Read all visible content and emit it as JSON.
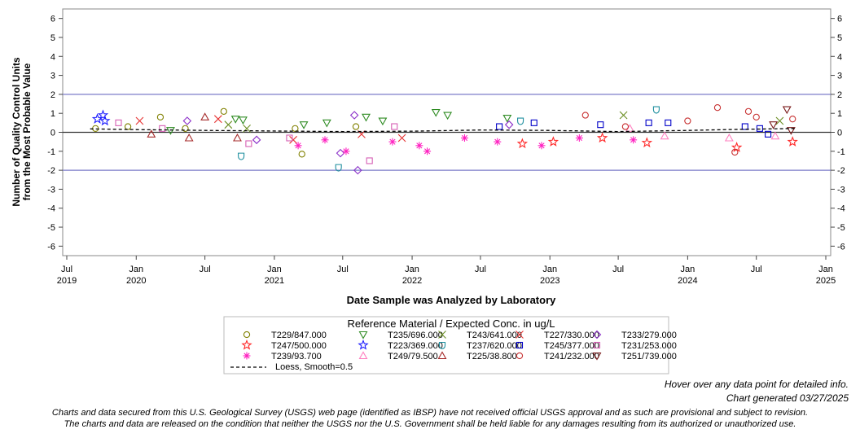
{
  "chart_data": {
    "type": "scatter",
    "title": "",
    "xlabel": "Date Sample was Analyzed by Laboratory",
    "ylabel_line1": "Number of Quality Control Units",
    "ylabel_line2": "from the Most Probable Value",
    "xlim": [
      "2019-07-01",
      "2025-01-01"
    ],
    "ylim": [
      -6.5,
      6.5
    ],
    "y_ticks": [
      "-6",
      "-5",
      "-4",
      "-3",
      "-2",
      "-1",
      "0",
      "1",
      "2",
      "3",
      "4",
      "5",
      "6"
    ],
    "x_ticks": [
      {
        "date": "2019-07-01",
        "line1": "Jul",
        "line2": "2019"
      },
      {
        "date": "2020-01-01",
        "line1": "Jan",
        "line2": "2020"
      },
      {
        "date": "2020-07-01",
        "line1": "Jul",
        "line2": ""
      },
      {
        "date": "2021-01-01",
        "line1": "Jan",
        "line2": "2021"
      },
      {
        "date": "2021-07-01",
        "line1": "Jul",
        "line2": ""
      },
      {
        "date": "2022-01-01",
        "line1": "Jan",
        "line2": "2022"
      },
      {
        "date": "2022-07-01",
        "line1": "Jul",
        "line2": ""
      },
      {
        "date": "2023-01-01",
        "line1": "Jan",
        "line2": "2023"
      },
      {
        "date": "2023-07-01",
        "line1": "Jul",
        "line2": ""
      },
      {
        "date": "2024-01-01",
        "line1": "Jan",
        "line2": "2024"
      },
      {
        "date": "2024-07-01",
        "line1": "Jul",
        "line2": ""
      },
      {
        "date": "2025-01-01",
        "line1": "Jan",
        "line2": "2025"
      }
    ],
    "reference_lines": [
      2,
      0,
      -2
    ],
    "reference_colors": {
      "limit": "#7b7bc8",
      "zero": "#333333"
    },
    "legend_title": "Reference Material / Expected Conc. in ug/L",
    "series": [
      {
        "name": "T229/847.000",
        "symbol": "circle",
        "color": "#808000",
        "points": [
          [
            "2019-09-15",
            0.2
          ],
          [
            "2019-12-10",
            0.3
          ],
          [
            "2020-03-05",
            0.8
          ],
          [
            "2020-05-10",
            0.2
          ],
          [
            "2020-08-20",
            1.1
          ],
          [
            "2021-02-25",
            0.2
          ],
          [
            "2021-03-15",
            -1.15
          ],
          [
            "2021-08-05",
            0.3
          ]
        ]
      },
      {
        "name": "T235/696.000",
        "symbol": "triangle-down",
        "color": "#2e8b22",
        "points": [
          [
            "2020-04-01",
            0.1
          ],
          [
            "2020-09-20",
            0.7
          ],
          [
            "2020-10-10",
            0.65
          ],
          [
            "2021-03-20",
            0.4
          ],
          [
            "2021-05-20",
            0.5
          ],
          [
            "2021-09-01",
            0.8
          ],
          [
            "2021-10-15",
            0.6
          ],
          [
            "2022-03-05",
            1.05
          ],
          [
            "2022-04-05",
            0.9
          ],
          [
            "2022-09-10",
            0.75
          ]
        ]
      },
      {
        "name": "T243/641.000",
        "symbol": "x",
        "color": "#6b8e23",
        "points": [
          [
            "2020-09-01",
            0.4
          ],
          [
            "2020-10-20",
            0.2
          ],
          [
            "2023-07-15",
            0.9
          ],
          [
            "2024-09-01",
            0.6
          ]
        ]
      },
      {
        "name": "T227/330.000",
        "symbol": "x",
        "color": "#e63232",
        "points": [
          [
            "2020-01-10",
            0.6
          ],
          [
            "2020-08-05",
            0.7
          ],
          [
            "2021-02-20",
            -0.4
          ],
          [
            "2021-08-20",
            -0.1
          ],
          [
            "2021-12-05",
            -0.3
          ]
        ]
      },
      {
        "name": "T233/279.000",
        "symbol": "diamond",
        "color": "#8b2fc9",
        "points": [
          [
            "2020-05-15",
            0.6
          ],
          [
            "2020-11-15",
            -0.4
          ],
          [
            "2021-06-25",
            -1.1
          ],
          [
            "2021-08-01",
            0.9
          ],
          [
            "2021-08-10",
            -2.0
          ],
          [
            "2022-09-15",
            0.4
          ]
        ]
      },
      {
        "name": "T247/500.000",
        "symbol": "star",
        "color": "#ff2a2a",
        "points": [
          [
            "2022-10-20",
            -0.6
          ],
          [
            "2023-01-10",
            -0.5
          ],
          [
            "2023-05-20",
            -0.3
          ],
          [
            "2023-09-15",
            -0.55
          ],
          [
            "2024-05-10",
            -0.8
          ],
          [
            "2024-10-05",
            -0.5
          ]
        ]
      },
      {
        "name": "T223/369.000",
        "symbol": "star",
        "color": "#1f1fff",
        "points": [
          [
            "2019-09-20",
            0.7
          ],
          [
            "2019-10-05",
            0.9
          ],
          [
            "2019-10-10",
            0.6
          ]
        ]
      },
      {
        "name": "T237/620.000",
        "symbol": "shield",
        "color": "#1f8f9f",
        "points": [
          [
            "2020-10-05",
            -1.25
          ],
          [
            "2021-06-20",
            -1.85
          ],
          [
            "2022-10-15",
            0.6
          ],
          [
            "2023-10-10",
            1.2
          ]
        ]
      },
      {
        "name": "T245/377.000",
        "symbol": "square",
        "color": "#0000c8",
        "points": [
          [
            "2022-08-20",
            0.3
          ],
          [
            "2022-11-20",
            0.5
          ],
          [
            "2023-05-15",
            0.4
          ],
          [
            "2023-09-20",
            0.5
          ],
          [
            "2023-11-10",
            0.5
          ],
          [
            "2024-06-01",
            0.3
          ],
          [
            "2024-07-10",
            0.2
          ],
          [
            "2024-08-01",
            -0.1
          ]
        ]
      },
      {
        "name": "T231/253.000",
        "symbol": "square",
        "color": "#d65fb4",
        "points": [
          [
            "2019-11-15",
            0.5
          ],
          [
            "2020-03-10",
            0.2
          ],
          [
            "2020-10-25",
            -0.6
          ],
          [
            "2021-02-10",
            -0.3
          ],
          [
            "2021-09-10",
            -1.5
          ],
          [
            "2021-11-15",
            0.3
          ]
        ]
      },
      {
        "name": "T239/93.700",
        "symbol": "asterisk",
        "color": "#ff20c0",
        "points": [
          [
            "2021-03-05",
            -0.7
          ],
          [
            "2021-05-15",
            -0.4
          ],
          [
            "2021-07-10",
            -1.0
          ],
          [
            "2021-11-10",
            -0.5
          ],
          [
            "2022-01-20",
            -0.7
          ],
          [
            "2022-02-10",
            -1.0
          ],
          [
            "2022-05-20",
            -0.3
          ],
          [
            "2022-08-15",
            -0.5
          ],
          [
            "2022-12-10",
            -0.7
          ],
          [
            "2023-03-20",
            -0.3
          ],
          [
            "2023-08-10",
            -0.4
          ]
        ]
      },
      {
        "name": "T249/79.500",
        "symbol": "triangle",
        "color": "#ff80c0",
        "points": [
          [
            "2023-08-01",
            0.2
          ],
          [
            "2023-11-01",
            -0.2
          ],
          [
            "2024-04-20",
            -0.3
          ],
          [
            "2024-08-20",
            -0.2
          ]
        ]
      },
      {
        "name": "T225/38.800",
        "symbol": "triangle",
        "color": "#a52a2a",
        "points": [
          [
            "2020-02-10",
            -0.1
          ],
          [
            "2020-05-20",
            -0.3
          ],
          [
            "2020-07-01",
            0.8
          ],
          [
            "2020-09-25",
            -0.3
          ]
        ]
      },
      {
        "name": "T241/232.000",
        "symbol": "circle",
        "color": "#c83232",
        "points": [
          [
            "2023-04-05",
            0.9
          ],
          [
            "2023-07-20",
            0.3
          ],
          [
            "2024-01-01",
            0.6
          ],
          [
            "2024-03-20",
            1.3
          ],
          [
            "2024-05-05",
            -1.05
          ],
          [
            "2024-06-10",
            1.1
          ],
          [
            "2024-07-01",
            0.8
          ],
          [
            "2024-10-05",
            0.7
          ]
        ]
      },
      {
        "name": "T251/739.000",
        "symbol": "triangle-down",
        "color": "#7a1a1a",
        "points": [
          [
            "2024-08-15",
            0.4
          ],
          [
            "2024-09-20",
            1.2
          ],
          [
            "2024-10-01",
            0.1
          ]
        ]
      }
    ],
    "loess": {
      "name": "Loess, Smooth=0.5",
      "points": [
        [
          "2019-09-01",
          0.18
        ],
        [
          "2020-01-01",
          0.14
        ],
        [
          "2020-07-01",
          0.1
        ],
        [
          "2021-01-01",
          0.07
        ],
        [
          "2021-07-01",
          0.04
        ],
        [
          "2022-01-01",
          0.06
        ],
        [
          "2022-07-01",
          0.12
        ],
        [
          "2023-01-01",
          0.1
        ],
        [
          "2023-07-01",
          0.04
        ],
        [
          "2024-01-01",
          0.1
        ],
        [
          "2024-05-01",
          0.15
        ],
        [
          "2024-10-15",
          0.2
        ]
      ]
    }
  },
  "notes": {
    "hover": "Hover over any data point for detailed info.",
    "generated": "Chart generated 03/27/2025"
  },
  "disclaimer": {
    "line1": "Charts and data secured from this U.S. Geological Survey (USGS) web page (identified as IBSP) have not received official USGS approval and as such are provisional and subject to revision.",
    "line2": "The charts and data are released on the condition that neither the USGS nor the U.S. Government shall be held liable for any damages resulting from its authorized or unauthorized use."
  }
}
